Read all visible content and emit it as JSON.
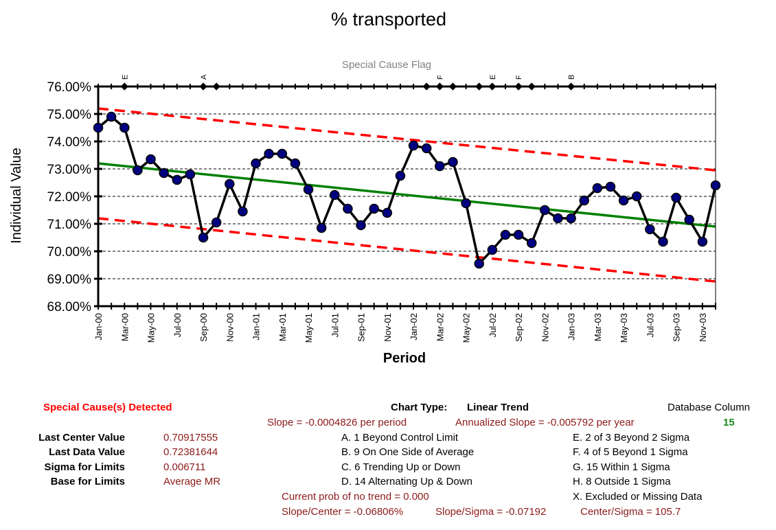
{
  "chart_data": {
    "type": "line",
    "title": "% transported",
    "flag_title": "Special Cause Flag",
    "xlabel": "Period",
    "ylabel": "Individual Value",
    "ylim": [
      0.68,
      0.76
    ],
    "y_ticks": [
      "68.00%",
      "69.00%",
      "70.00%",
      "71.00%",
      "72.00%",
      "73.00%",
      "74.00%",
      "75.00%",
      "76.00%"
    ],
    "x_tick_labels": [
      "Jan-00",
      "Mar-00",
      "May-00",
      "Jul-00",
      "Sep-00",
      "Nov-00",
      "Jan-01",
      "Mar-01",
      "May-01",
      "Jul-01",
      "Sep-01",
      "Nov-01",
      "Jan-02",
      "Mar-02",
      "May-02",
      "Jul-02",
      "Sep-02",
      "Nov-02",
      "Jan-03",
      "Mar-03",
      "May-03",
      "Jul-03",
      "Sep-03",
      "Nov-03"
    ],
    "grid": true,
    "series": [
      {
        "values": [
          0.745,
          0.749,
          0.745,
          0.7295,
          0.7335,
          0.7285,
          0.726,
          0.728,
          0.705,
          0.7105,
          0.7245,
          0.7145,
          0.732,
          0.7355,
          0.7355,
          0.732,
          0.7225,
          0.7085,
          0.7205,
          0.7155,
          0.7095,
          0.7155,
          0.714,
          0.7275,
          0.7385,
          0.7375,
          0.731,
          0.7325,
          0.7175,
          0.6955,
          0.7005,
          0.706,
          0.706,
          0.703,
          0.715,
          0.712,
          0.712,
          0.7185,
          0.723,
          0.7235,
          0.7185,
          0.72,
          0.708,
          0.7035,
          0.7195,
          0.7115,
          0.7035,
          0.724
        ]
      }
    ],
    "center_line": {
      "start": 0.732,
      "end": 0.709
    },
    "upper_limit": {
      "start": 0.752,
      "end": 0.7295
    },
    "lower_limit": {
      "start": 0.712,
      "end": 0.689
    },
    "flags": [
      {
        "index": 2,
        "label": "E"
      },
      {
        "index": 8,
        "label": "A"
      },
      {
        "index": 9,
        "label": ""
      },
      {
        "index": 25,
        "label": ""
      },
      {
        "index": 26,
        "label": "F"
      },
      {
        "index": 27,
        "label": ""
      },
      {
        "index": 29,
        "label": ""
      },
      {
        "index": 30,
        "label": "E"
      },
      {
        "index": 32,
        "label": "F"
      },
      {
        "index": 33,
        "label": ""
      },
      {
        "index": 36,
        "label": "B"
      }
    ],
    "colors": {
      "data_line": "#000000",
      "data_marker": "#000080",
      "center_line": "#008000",
      "limit_lines": "#ff0000",
      "flag_title": "#808080"
    }
  },
  "summary": {
    "special_cause": "Special Cause(s) Detected",
    "chart_type_label": "Chart Type:",
    "chart_type_value": "Linear Trend",
    "database_column_label": "Database Column",
    "database_column_value": "15",
    "slope": "Slope = -0.0004826 per period",
    "annualized_slope": "Annualized Slope = -0.005792 per year",
    "stats": [
      {
        "label": "Last Center Value",
        "value": "0.70917555"
      },
      {
        "label": "Last Data Value",
        "value": "0.72381644"
      },
      {
        "label": "Sigma for Limits",
        "value": "0.006711"
      },
      {
        "label": "Base for Limits",
        "value": "Average MR"
      }
    ],
    "rules_left": [
      "A.  1 Beyond Control Limit",
      "B.  9 On One Side of Average",
      "C.  6 Trending Up or Down",
      "D.  14 Alternating  Up & Down"
    ],
    "rules_right": [
      "E.   2 of 3 Beyond 2 Sigma",
      "F.   4 of 5 Beyond 1 Sigma",
      "G.   15 Within 1 Sigma",
      "H.   8 Outside 1 Sigma",
      "X.   Excluded or Missing Data"
    ],
    "prob_no_trend": "Current prob of no trend = 0.000",
    "slope_center": "Slope/Center = -0.06806%",
    "slope_sigma": "Slope/Sigma = -0.07192",
    "center_sigma": "Center/Sigma = 105.7"
  }
}
